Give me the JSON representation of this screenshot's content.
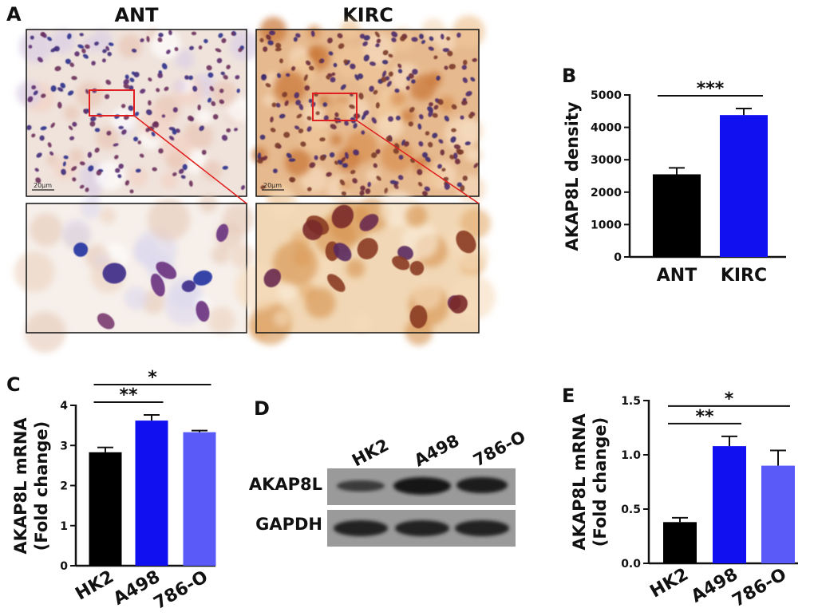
{
  "panel_labels": [
    "A",
    "B",
    "C",
    "D",
    "E"
  ],
  "panel_a": {
    "columns": [
      "ANT",
      "KIRC"
    ],
    "scale_bar": "20μm"
  },
  "panel_d": {
    "lanes": [
      "HK2",
      "A498",
      "786-O"
    ],
    "rows": [
      "AKAP8L",
      "GAPDH"
    ]
  },
  "colors": {
    "black": "#000000",
    "blue": "#1010f0",
    "light_blue": "#5a5af8",
    "roi": "#e02020"
  },
  "chart_data": [
    {
      "id": "B",
      "type": "bar",
      "categories": [
        "ANT",
        "KIRC"
      ],
      "values": [
        2550,
        4380
      ],
      "errors": [
        200,
        200
      ],
      "colors": [
        "#000000",
        "#1010f0"
      ],
      "ylabel": "AKAP8L density",
      "ylim": [
        0,
        5000
      ],
      "yticks": [
        0,
        1000,
        2000,
        3000,
        4000,
        5000
      ],
      "ytick_labels": [
        "0",
        "1000",
        "2000",
        "3000",
        "4000",
        "5000"
      ],
      "significance": [
        {
          "from": 0,
          "to": 1,
          "label": "***"
        }
      ]
    },
    {
      "id": "C",
      "type": "bar",
      "categories": [
        "HK2",
        "A498",
        "786-O"
      ],
      "values": [
        2.83,
        3.62,
        3.33
      ],
      "errors": [
        0.12,
        0.14,
        0.04
      ],
      "colors": [
        "#000000",
        "#1010f0",
        "#5a5af8"
      ],
      "ylabel": [
        "AKAP8L mRNA",
        "(Fold change)"
      ],
      "ylim": [
        0,
        4
      ],
      "yticks": [
        0,
        1,
        2,
        3,
        4
      ],
      "ytick_labels": [
        "0",
        "1",
        "2",
        "3",
        "4"
      ],
      "significance": [
        {
          "from": 0,
          "to": 1,
          "label": "**"
        },
        {
          "from": 0,
          "to": 2,
          "label": "*"
        }
      ]
    },
    {
      "id": "E",
      "type": "bar",
      "categories": [
        "HK2",
        "A498",
        "786-O"
      ],
      "values": [
        0.38,
        1.08,
        0.9
      ],
      "errors": [
        0.04,
        0.09,
        0.14
      ],
      "colors": [
        "#000000",
        "#1010f0",
        "#5a5af8"
      ],
      "ylabel": [
        "AKAP8L mRNA",
        "(Fold change)"
      ],
      "ylim": [
        0,
        1.5
      ],
      "yticks": [
        0,
        0.5,
        1,
        1.5
      ],
      "ytick_labels": [
        "0.0",
        "0.5",
        "1.0",
        "1.5"
      ],
      "significance": [
        {
          "from": 0,
          "to": 1,
          "label": "**"
        },
        {
          "from": 0,
          "to": 2,
          "label": "*"
        }
      ]
    }
  ]
}
